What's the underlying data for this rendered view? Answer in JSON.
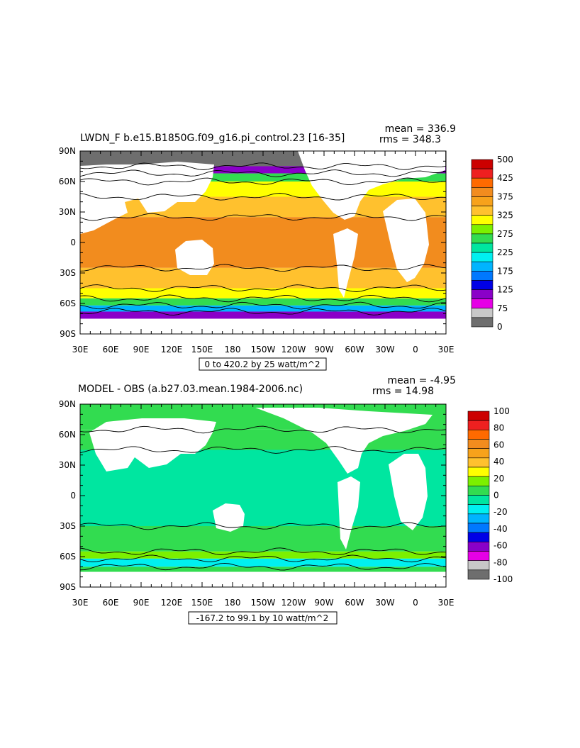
{
  "chart_data": [
    {
      "type": "heatmap",
      "title": "LWDN_F b.e15.B1850G.f09_g16.pi_control.23 [16-35]",
      "stats": {
        "mean": "mean = 336.9",
        "rms": "rms = 348.3"
      },
      "range_note": "0 to 420.2 by 25 watt/m^2",
      "x_ticks": [
        "30E",
        "60E",
        "90E",
        "120E",
        "150E",
        "180",
        "150W",
        "120W",
        "90W",
        "60W",
        "30W",
        "0",
        "30E"
      ],
      "y_ticks": [
        "90N",
        "60N",
        "30N",
        "0",
        "30S",
        "60S",
        "90S"
      ],
      "levels": [
        500,
        425,
        375,
        325,
        275,
        225,
        175,
        125,
        75,
        0
      ],
      "colors": [
        "#cc0000",
        "#ee2020",
        "#ff6a00",
        "#f28c1e",
        "#f7a21b",
        "#ffc12e",
        "#ffff00",
        "#7cf000",
        "#32dc50",
        "#00e6a0",
        "#00f0f0",
        "#00b4ff",
        "#0078ff",
        "#0000e6",
        "#8a00c8",
        "#e600e6",
        "#c8c8c8",
        "#6e6e6e"
      ],
      "zones": [
        {
          "lat": [
            90,
            75
          ],
          "level": "#6e6e6e"
        },
        {
          "lat": [
            75,
            68
          ],
          "level": "#8a00c8"
        },
        {
          "lat": [
            68,
            60
          ],
          "level": "#32dc50"
        },
        {
          "lat": [
            60,
            45
          ],
          "level": "#ffff00"
        },
        {
          "lat": [
            45,
            25
          ],
          "level": "#ffc12e"
        },
        {
          "lat": [
            25,
            -25
          ],
          "level": "#f28c1e"
        },
        {
          "lat": [
            -25,
            -45
          ],
          "level": "#ffc12e"
        },
        {
          "lat": [
            -45,
            -55
          ],
          "level": "#ffff00"
        },
        {
          "lat": [
            -55,
            -62
          ],
          "level": "#32dc50"
        },
        {
          "lat": [
            -62,
            -68
          ],
          "level": "#00b4ff"
        },
        {
          "lat": [
            -68,
            -75
          ],
          "level": "#8a00c8"
        }
      ]
    },
    {
      "type": "heatmap",
      "title": "MODEL - OBS (a.b27.03.mean.1984-2006.nc)",
      "stats": {
        "mean": "mean = -4.95",
        "rms": "rms = 14.98"
      },
      "range_note": "-167.2 to 99.1 by 10 watt/m^2",
      "x_ticks": [
        "30E",
        "60E",
        "90E",
        "120E",
        "150E",
        "180",
        "150W",
        "120W",
        "90W",
        "60W",
        "30W",
        "0",
        "30E"
      ],
      "y_ticks": [
        "90N",
        "60N",
        "30N",
        "0",
        "30S",
        "60S",
        "90S"
      ],
      "levels": [
        100,
        80,
        60,
        40,
        20,
        0,
        -20,
        -40,
        -60,
        -80,
        -100
      ],
      "colors": [
        "#cc0000",
        "#ee2020",
        "#ff6a00",
        "#f28c1e",
        "#f7a21b",
        "#ffc12e",
        "#ffff00",
        "#7cf000",
        "#32dc50",
        "#00e6a0",
        "#00f0f0",
        "#00b4ff",
        "#0078ff",
        "#0000e6",
        "#8a00c8",
        "#e600e6",
        "#c8c8c8",
        "#6e6e6e"
      ],
      "zones": [
        {
          "lat": [
            90,
            65
          ],
          "level": "#32dc50"
        },
        {
          "lat": [
            65,
            45
          ],
          "level": "#32dc50"
        },
        {
          "lat": [
            45,
            -30
          ],
          "level": "#00e6a0"
        },
        {
          "lat": [
            -30,
            -55
          ],
          "level": "#32dc50"
        },
        {
          "lat": [
            -55,
            -62
          ],
          "level": "#7cf000"
        },
        {
          "lat": [
            -62,
            -70
          ],
          "level": "#00f0f0"
        },
        {
          "lat": [
            -70,
            -75
          ],
          "level": "#32dc50"
        }
      ]
    }
  ]
}
